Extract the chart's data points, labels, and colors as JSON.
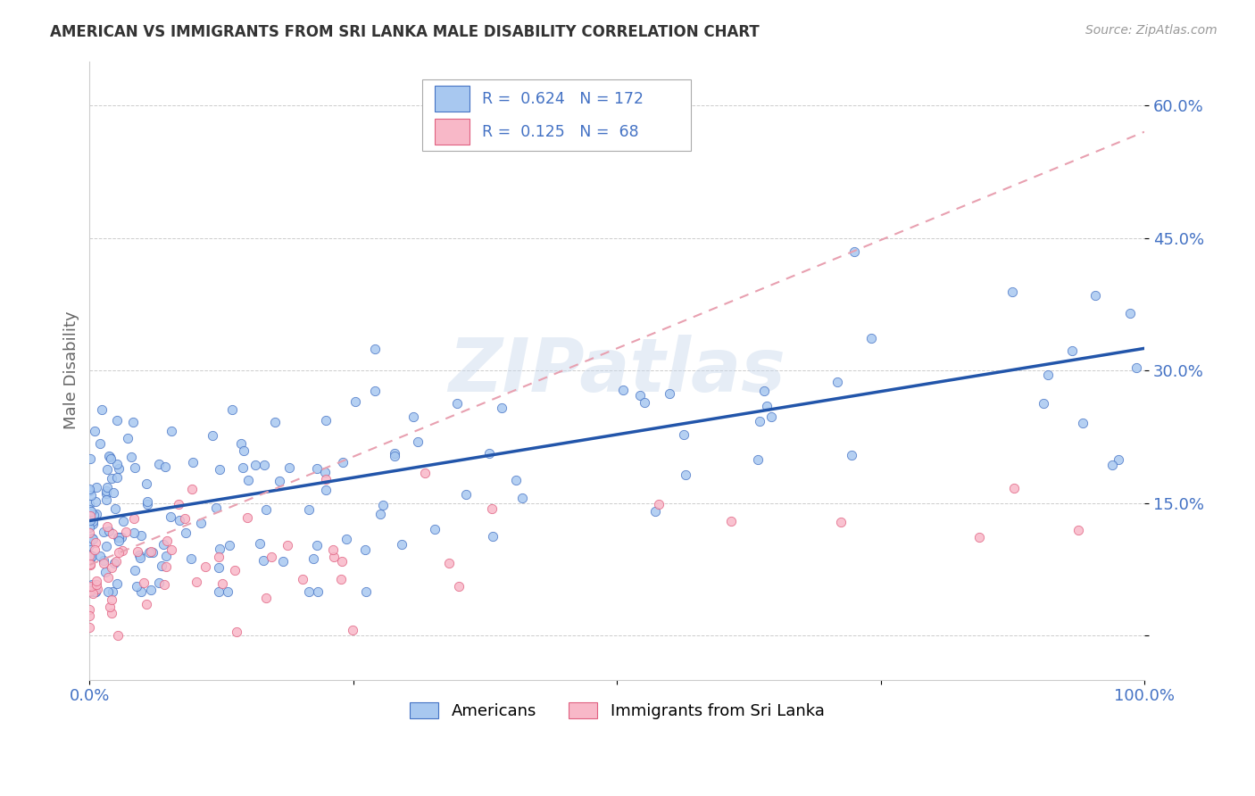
{
  "title": "AMERICAN VS IMMIGRANTS FROM SRI LANKA MALE DISABILITY CORRELATION CHART",
  "source": "Source: ZipAtlas.com",
  "ylabel": "Male Disability",
  "yticks": [
    0.0,
    0.15,
    0.3,
    0.45,
    0.6
  ],
  "ytick_labels": [
    "",
    "15.0%",
    "30.0%",
    "45.0%",
    "60.0%"
  ],
  "xlim": [
    0.0,
    1.0
  ],
  "ylim": [
    -0.05,
    0.65
  ],
  "color_american": "#a8c8f0",
  "color_american_edge": "#4472c4",
  "color_srilanka": "#f8b8c8",
  "color_srilanka_edge": "#e06080",
  "color_american_line": "#2255aa",
  "color_srilanka_line": "#e8a0b0",
  "watermark": "ZIPatlas",
  "background_color": "#ffffff",
  "grid_color": "#cccccc",
  "legend_label1": "Americans",
  "legend_label2": "Immigrants from Sri Lanka",
  "am_line_x0": 0.0,
  "am_line_y0": 0.13,
  "am_line_x1": 1.0,
  "am_line_y1": 0.325,
  "sl_line_x0": 0.0,
  "sl_line_y0": 0.08,
  "sl_line_x1": 1.0,
  "sl_line_y1": 0.57
}
